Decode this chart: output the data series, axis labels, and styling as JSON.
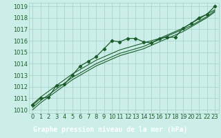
{
  "xlabel": "Graphe pression niveau de la mer (hPa)",
  "bg_color": "#cceee8",
  "grid_color": "#aad4cc",
  "line_color": "#1a5c2a",
  "label_bar_color": "#2d7a4a",
  "label_text_color": "#ffffff",
  "xlim_min": -0.5,
  "xlim_max": 23.5,
  "ylim_min": 1009.7,
  "ylim_max": 1019.3,
  "yticks": [
    1010,
    1011,
    1012,
    1013,
    1014,
    1015,
    1016,
    1017,
    1018,
    1019
  ],
  "xticks": [
    0,
    1,
    2,
    3,
    4,
    5,
    6,
    7,
    8,
    9,
    10,
    11,
    12,
    13,
    14,
    15,
    16,
    17,
    18,
    19,
    20,
    21,
    22,
    23
  ],
  "main_data": [
    1010.4,
    1011.0,
    1011.1,
    1012.1,
    1012.2,
    1013.0,
    1013.8,
    1014.2,
    1014.6,
    1015.3,
    1016.0,
    1015.9,
    1016.2,
    1016.2,
    1015.9,
    1015.8,
    1016.2,
    1016.3,
    1016.3,
    1017.1,
    1017.5,
    1018.0,
    1018.3,
    1019.0
  ],
  "linear1": [
    1010.5,
    1011.1,
    1011.6,
    1012.1,
    1012.6,
    1013.1,
    1013.5,
    1013.9,
    1014.3,
    1014.6,
    1014.9,
    1015.2,
    1015.4,
    1015.6,
    1015.8,
    1016.0,
    1016.2,
    1016.5,
    1016.8,
    1017.1,
    1017.5,
    1017.9,
    1018.3,
    1018.7
  ],
  "linear2": [
    1010.2,
    1010.8,
    1011.3,
    1011.8,
    1012.3,
    1012.8,
    1013.2,
    1013.6,
    1014.0,
    1014.3,
    1014.6,
    1014.9,
    1015.1,
    1015.3,
    1015.5,
    1015.8,
    1016.1,
    1016.4,
    1016.7,
    1017.0,
    1017.3,
    1017.7,
    1018.1,
    1018.6
  ],
  "linear3": [
    1010.0,
    1010.6,
    1011.1,
    1011.6,
    1012.1,
    1012.6,
    1013.0,
    1013.4,
    1013.8,
    1014.1,
    1014.4,
    1014.7,
    1014.9,
    1015.1,
    1015.3,
    1015.6,
    1015.9,
    1016.2,
    1016.5,
    1016.8,
    1017.2,
    1017.6,
    1018.0,
    1018.5
  ],
  "tick_fontsize": 6,
  "xlabel_fontsize": 7,
  "xlabel_fontweight": "bold"
}
